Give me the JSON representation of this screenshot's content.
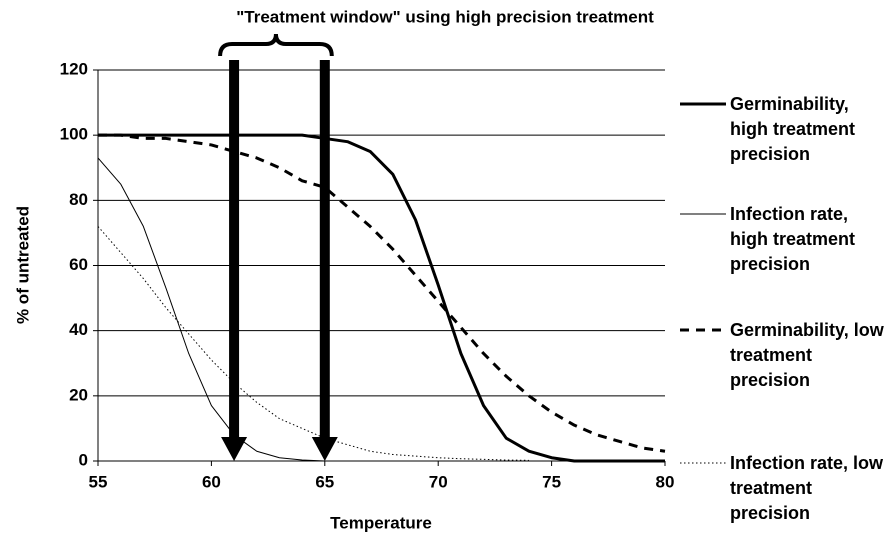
{
  "chart_data": {
    "type": "line",
    "title": "\"Treatment window\" using high precision treatment",
    "xlabel": "Temperature",
    "ylabel": "% of untreated",
    "x": [
      55,
      56,
      57,
      58,
      59,
      60,
      61,
      62,
      63,
      64,
      65,
      66,
      67,
      68,
      69,
      70,
      71,
      72,
      73,
      74,
      75,
      76,
      77,
      78,
      79,
      80
    ],
    "series": [
      {
        "name": "Germinability, high treatment precision",
        "color": "#000000",
        "width": 3,
        "style": "solid",
        "values": [
          100,
          100,
          100,
          100,
          100,
          100,
          100,
          100,
          100,
          100,
          99,
          98,
          95,
          88,
          74,
          54,
          33,
          17,
          7,
          3,
          1,
          0,
          0,
          0,
          0,
          0
        ]
      },
      {
        "name": "Infection rate, high treatment precision",
        "color": "#000000",
        "width": 1,
        "style": "solid",
        "values": [
          93,
          85,
          72,
          53,
          33,
          17,
          8,
          3,
          1,
          0.3,
          0,
          0,
          0,
          0,
          0,
          0,
          0,
          0,
          0,
          0,
          0,
          0,
          0,
          0,
          0,
          0
        ]
      },
      {
        "name": "Germinability, low treatment precision",
        "color": "#000000",
        "width": 3,
        "style": "dashed",
        "values": [
          100,
          100,
          99,
          99,
          98,
          97,
          95,
          93,
          90,
          86,
          84,
          78,
          72,
          65,
          57,
          49,
          41,
          33,
          26,
          20,
          15,
          11,
          8,
          6,
          4,
          3
        ]
      },
      {
        "name": "Infection rate, low treatment precision",
        "color": "#000000",
        "width": 1,
        "style": "dotted",
        "values": [
          72,
          64,
          56,
          47,
          39,
          31,
          24,
          18,
          13,
          10,
          7,
          5,
          3,
          2,
          1.5,
          1,
          0.7,
          0.5,
          0.3,
          0.2,
          null,
          null,
          null,
          null,
          null,
          null
        ]
      }
    ],
    "window_arrows_x": [
      61,
      65
    ],
    "xlim": [
      55,
      80
    ],
    "xticks": [
      55,
      60,
      65,
      70,
      75,
      80
    ],
    "ylim": [
      0,
      120
    ],
    "yticks": [
      0,
      20,
      40,
      60,
      80,
      100,
      120
    ],
    "grid": true,
    "legend": "right"
  }
}
